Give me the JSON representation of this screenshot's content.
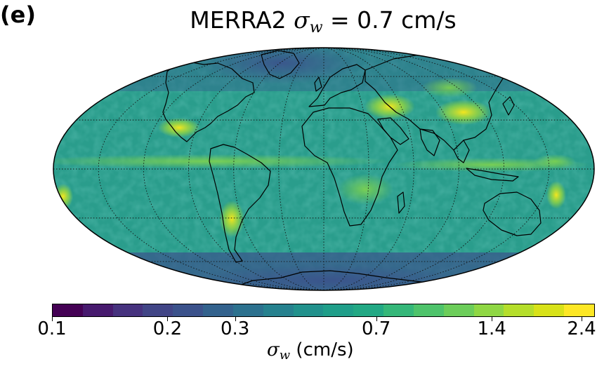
{
  "panel_label": "(e)",
  "title": {
    "prefix": "MERRA2 ",
    "symbol": "σ",
    "subscript": "w",
    "suffix": " = 0.7 cm/s"
  },
  "map": {
    "projection": "Mollweide",
    "graticule": "dotted",
    "meridian_spacing_deg": 30,
    "parallel_spacing_deg": 30,
    "ocean_base_color": "#2a9d8c",
    "coastline_color": "#000000"
  },
  "colorbar": {
    "colors": [
      "#440154",
      "#471a6e",
      "#46327e",
      "#414586",
      "#3b528b",
      "#33628d",
      "#2c718e",
      "#26818e",
      "#21918c",
      "#1f9e89",
      "#22a884",
      "#35b779",
      "#4ec36b",
      "#6ccd5a",
      "#8fd744",
      "#b5de2b",
      "#d8e219",
      "#fde725"
    ],
    "scale": "log",
    "range": [
      0.1,
      2.6
    ],
    "ticks": [
      {
        "value": 0.1,
        "label": "0.1"
      },
      {
        "value": 0.2,
        "label": "0.2"
      },
      {
        "value": 0.3,
        "label": "0.3"
      },
      {
        "value": 0.7,
        "label": "0.7"
      },
      {
        "value": 1.4,
        "label": "1.4"
      },
      {
        "value": 2.4,
        "label": "2.4"
      }
    ],
    "label_symbol": "σ",
    "label_subscript": "w",
    "label_units": "  (cm/s)"
  }
}
